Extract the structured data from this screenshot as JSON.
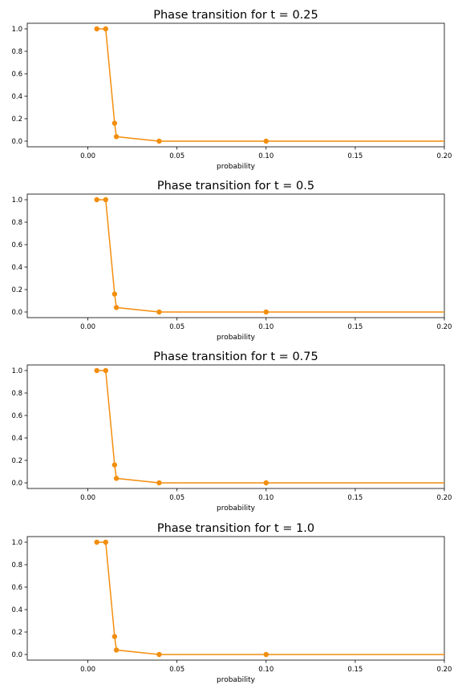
{
  "style": {
    "line_color": "#f28e0e",
    "marker_color": "#f28e0e",
    "axes_color": "#000000",
    "background": "#ffffff"
  },
  "chart_data": [
    {
      "type": "line",
      "title": "Phase transition for t = 0.25",
      "xlabel": "probability",
      "ylabel": "",
      "xlim": [
        -0.034,
        0.2
      ],
      "ylim": [
        -0.05,
        1.05
      ],
      "xticks": [
        "0.00",
        "0.05",
        "0.10",
        "0.15",
        "0.20"
      ],
      "yticks": [
        "0.0",
        "0.2",
        "0.4",
        "0.6",
        "0.8",
        "1.0"
      ],
      "grid": false,
      "series": [
        {
          "x": [
            0.005,
            0.01,
            0.015,
            0.016,
            0.04,
            0.1,
            0.2
          ],
          "y": [
            1.0,
            1.0,
            0.16,
            0.04,
            0.0,
            0.0,
            0.0
          ],
          "markers": [
            0,
            1,
            2,
            3,
            4,
            5
          ]
        }
      ]
    },
    {
      "type": "line",
      "title": "Phase transition for t = 0.5",
      "xlabel": "probability",
      "ylabel": "",
      "xlim": [
        -0.034,
        0.2
      ],
      "ylim": [
        -0.05,
        1.05
      ],
      "xticks": [
        "0.00",
        "0.05",
        "0.10",
        "0.15",
        "0.20"
      ],
      "yticks": [
        "0.0",
        "0.2",
        "0.4",
        "0.6",
        "0.8",
        "1.0"
      ],
      "grid": false,
      "series": [
        {
          "x": [
            0.005,
            0.01,
            0.015,
            0.016,
            0.04,
            0.1,
            0.2
          ],
          "y": [
            1.0,
            1.0,
            0.16,
            0.04,
            0.0,
            0.0,
            0.0
          ],
          "markers": [
            0,
            1,
            2,
            3,
            4,
            5
          ]
        }
      ]
    },
    {
      "type": "line",
      "title": "Phase transition for t = 0.75",
      "xlabel": "probability",
      "ylabel": "",
      "xlim": [
        -0.034,
        0.2
      ],
      "ylim": [
        -0.05,
        1.05
      ],
      "xticks": [
        "0.00",
        "0.05",
        "0.10",
        "0.15",
        "0.20"
      ],
      "yticks": [
        "0.0",
        "0.2",
        "0.4",
        "0.6",
        "0.8",
        "1.0"
      ],
      "grid": false,
      "series": [
        {
          "x": [
            0.005,
            0.01,
            0.015,
            0.016,
            0.04,
            0.1,
            0.2
          ],
          "y": [
            1.0,
            1.0,
            0.16,
            0.04,
            0.0,
            0.0,
            0.0
          ],
          "markers": [
            0,
            1,
            2,
            3,
            4,
            5
          ]
        }
      ]
    },
    {
      "type": "line",
      "title": "Phase transition for t = 1.0",
      "xlabel": "probability",
      "ylabel": "",
      "xlim": [
        -0.034,
        0.2
      ],
      "ylim": [
        -0.05,
        1.05
      ],
      "xticks": [
        "0.00",
        "0.05",
        "0.10",
        "0.15",
        "0.20"
      ],
      "yticks": [
        "0.0",
        "0.2",
        "0.4",
        "0.6",
        "0.8",
        "1.0"
      ],
      "grid": false,
      "series": [
        {
          "x": [
            0.005,
            0.01,
            0.015,
            0.016,
            0.04,
            0.1,
            0.2
          ],
          "y": [
            1.0,
            1.0,
            0.16,
            0.04,
            0.0,
            0.0,
            0.0
          ],
          "markers": [
            0,
            1,
            2,
            3,
            4,
            5
          ]
        }
      ]
    }
  ]
}
